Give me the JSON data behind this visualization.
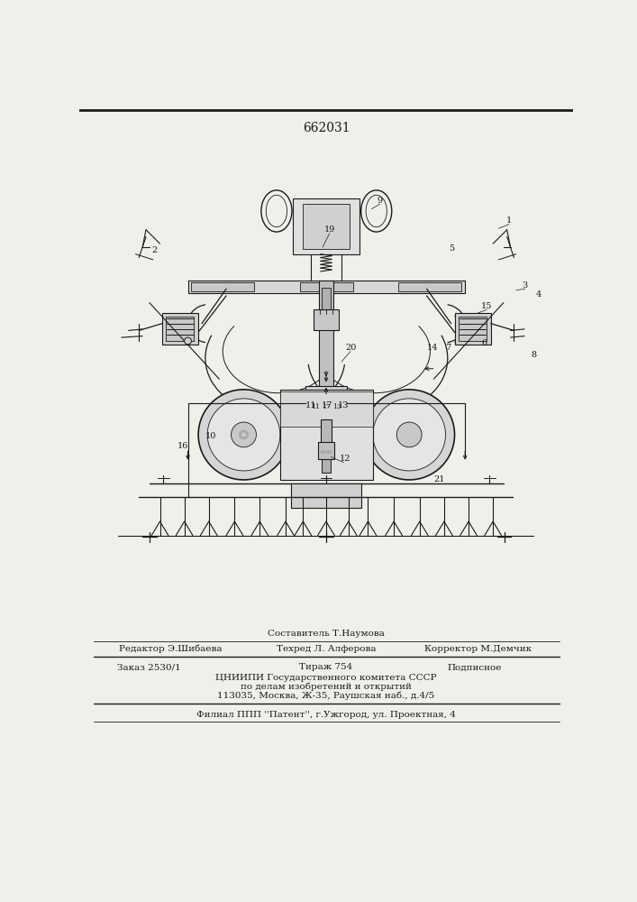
{
  "patent_number": "662031",
  "bg": "#f0f0eb",
  "lc": "#1a1a1a",
  "footer": {
    "sestavitel": "Составитель Т.Наумова",
    "redaktor": "Редактор Э.Шибаева",
    "tehred": "Техред Л. Алферова",
    "korrektor": "Корректор М.Демчик",
    "zakaz": "Заказ 2530/1",
    "tirazh": "Тираж 754",
    "podpisnoe": "Подписное",
    "inst1": "ЦНИИПИ Государственного комитета СССР",
    "inst2": "по делам изобретений и открытий",
    "inst3": "113035, Москва, Ж-35, Раушская наб., д.4/5",
    "filial": "Филиал ППП ''Патент'', г.Ужгород, ул. Проектная, 4"
  }
}
